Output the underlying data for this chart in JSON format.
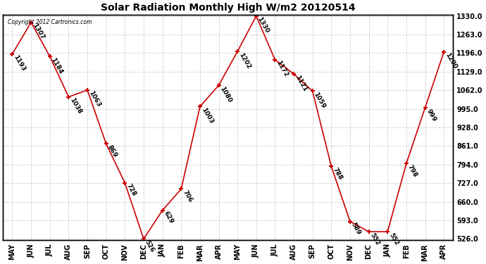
{
  "months": [
    "MAY",
    "JUN",
    "JUL",
    "AUG",
    "SEP",
    "OCT",
    "NOV",
    "DEC",
    "JAN",
    "FEB",
    "MAR",
    "APR",
    "MAY",
    "JUN",
    "JUL",
    "AUG",
    "SEP",
    "OCT",
    "NOV",
    "DEC",
    "JAN",
    "FEB",
    "MAR",
    "APR"
  ],
  "values": [
    1193,
    1307,
    1184,
    1038,
    1063,
    869,
    728,
    526,
    629,
    706,
    1003,
    1080,
    1202,
    1330,
    1172,
    1121,
    1059,
    788,
    589,
    552,
    552,
    798,
    999,
    1200
  ],
  "title": "Solar Radiation Monthly High W/m2 20120514",
  "copyright": "Copyright 2012 Cartronics.com",
  "line_color": "#cc0000",
  "marker_color": "#cc0000",
  "bg_color": "#ffffff",
  "grid_color": "#bbbbbb",
  "ylim_min": 526.0,
  "ylim_max": 1330.0,
  "yticks": [
    526.0,
    593.0,
    660.0,
    727.0,
    794.0,
    861.0,
    928.0,
    995.0,
    1062.0,
    1129.0,
    1196.0,
    1263.0,
    1330.0
  ],
  "title_fontsize": 10,
  "label_fontsize": 7,
  "annotation_fontsize": 6.5
}
